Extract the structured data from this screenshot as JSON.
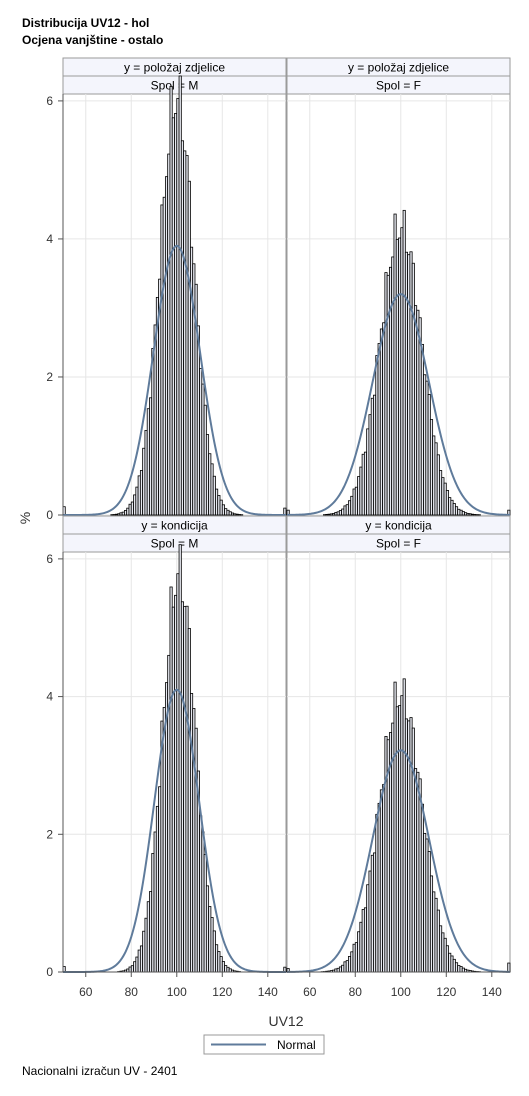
{
  "titles": [
    "Distribucija UV12 - hol",
    "Ocjena vanjštine - ostalo"
  ],
  "footnote": "Nacionalni izračun UV - 2401",
  "colors": {
    "bar_fill": "#e6e8f0",
    "bar_edge": "#000000",
    "normal_curve": "#5f7b9b",
    "header_bg": "#f4f5fc",
    "grid": "#e6e6e6"
  },
  "chart_data": {
    "type": "histogram-panel",
    "xlabel": "UV12",
    "ylabel": "%",
    "xlim": [
      50,
      148
    ],
    "ylim": [
      0,
      6.1
    ],
    "x_ticks": [
      60,
      80,
      100,
      120,
      140
    ],
    "y_ticks": [
      0,
      2,
      4,
      6
    ],
    "bin_width": 1,
    "legend": {
      "position": "bottom-center",
      "entries": [
        "Normal"
      ]
    },
    "panels": [
      {
        "row_label": "y = položaj zdjelice",
        "col_label": "Spol = M",
        "peak": 6.05,
        "peak_x": 100,
        "sd": 7.5,
        "normal_peak": 3.9,
        "normal_mean": 100,
        "normal_sd": 10.2,
        "edge_lo": 0.12,
        "edge_hi": 0.1
      },
      {
        "row_label": "y = položaj zdjelice",
        "col_label": "Spol = F",
        "peak": 4.17,
        "peak_x": 100,
        "sd": 9.2,
        "normal_peak": 3.2,
        "normal_mean": 100,
        "normal_sd": 12.3,
        "edge_lo": 0.07,
        "edge_hi": 0.07
      },
      {
        "row_label": "y = kondicija",
        "col_label": "Spol = M",
        "peak": 5.8,
        "peak_x": 101,
        "sd": 7.2,
        "normal_peak": 4.1,
        "normal_mean": 100,
        "normal_sd": 9.8,
        "edge_lo": 0.08,
        "edge_hi": 0.07
      },
      {
        "row_label": "y = kondicija",
        "col_label": "Spol = F",
        "peak": 4.02,
        "peak_x": 100,
        "sd": 9.4,
        "normal_peak": 3.22,
        "normal_mean": 100,
        "normal_sd": 12.3,
        "edge_lo": 0.05,
        "edge_hi": 0.13
      }
    ]
  }
}
